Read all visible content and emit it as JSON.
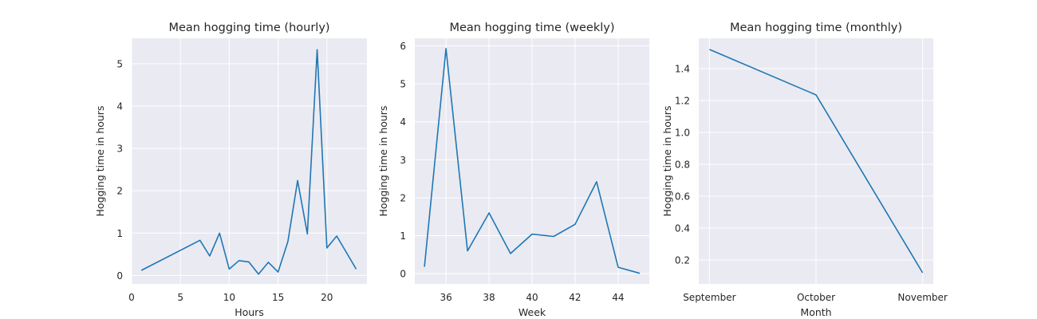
{
  "chart_data": [
    {
      "type": "line",
      "title": "Mean hogging time (hourly)",
      "xlabel": "Hours",
      "ylabel": "Hogging time in hours",
      "x": [
        1,
        7,
        8,
        9,
        10,
        11,
        12,
        13,
        14,
        15,
        16,
        17,
        18,
        19,
        20,
        21,
        23
      ],
      "y": [
        0.12,
        0.83,
        0.46,
        1.0,
        0.15,
        0.35,
        0.32,
        0.03,
        0.31,
        0.08,
        0.8,
        2.24,
        0.98,
        5.33,
        0.65,
        0.93,
        0.15
      ],
      "xlim": [
        0,
        24.1
      ],
      "ylim": [
        -0.2,
        5.6
      ],
      "xticks": [
        0,
        5,
        10,
        15,
        20
      ],
      "xtick_labels": [
        "0",
        "5",
        "10",
        "15",
        "20"
      ],
      "yticks": [
        0,
        1,
        2,
        3,
        4,
        5
      ],
      "ytick_labels": [
        "0",
        "1",
        "2",
        "3",
        "4",
        "5"
      ],
      "grid": true,
      "color": "#1f77b4"
    },
    {
      "type": "line",
      "title": "Mean hogging time (weekly)",
      "xlabel": "Week",
      "ylabel": "Hogging time in hours",
      "x": [
        35,
        36,
        37,
        38,
        39,
        40,
        41,
        42,
        43,
        44,
        45
      ],
      "y": [
        0.18,
        5.93,
        0.6,
        1.6,
        0.53,
        1.04,
        0.98,
        1.3,
        2.42,
        0.17,
        0.01
      ],
      "xlim": [
        34.55,
        45.45
      ],
      "ylim": [
        -0.27,
        6.2
      ],
      "xticks": [
        36,
        38,
        40,
        42,
        44
      ],
      "xtick_labels": [
        "36",
        "38",
        "40",
        "42",
        "44"
      ],
      "yticks": [
        0,
        1,
        2,
        3,
        4,
        5,
        6
      ],
      "ytick_labels": [
        "0",
        "1",
        "2",
        "3",
        "4",
        "5",
        "6"
      ],
      "grid": true,
      "color": "#1f77b4"
    },
    {
      "type": "line",
      "title": "Mean hogging time (monthly)",
      "xlabel": "Month",
      "ylabel": "Hogging time in hours",
      "categories": [
        "September",
        "October",
        "November"
      ],
      "x": [
        0,
        1,
        2
      ],
      "y": [
        1.52,
        1.235,
        0.12
      ],
      "xlim": [
        -0.1,
        2.1
      ],
      "ylim": [
        0.05,
        1.59
      ],
      "xticks": [
        0,
        1,
        2
      ],
      "xtick_labels": [
        "September",
        "October",
        "November"
      ],
      "yticks": [
        0.2,
        0.4,
        0.6,
        0.8,
        1.0,
        1.2,
        1.4
      ],
      "ytick_labels": [
        "0.2",
        "0.4",
        "0.6",
        "0.8",
        "1.0",
        "1.2",
        "1.4"
      ],
      "grid": true,
      "color": "#1f77b4"
    }
  ]
}
